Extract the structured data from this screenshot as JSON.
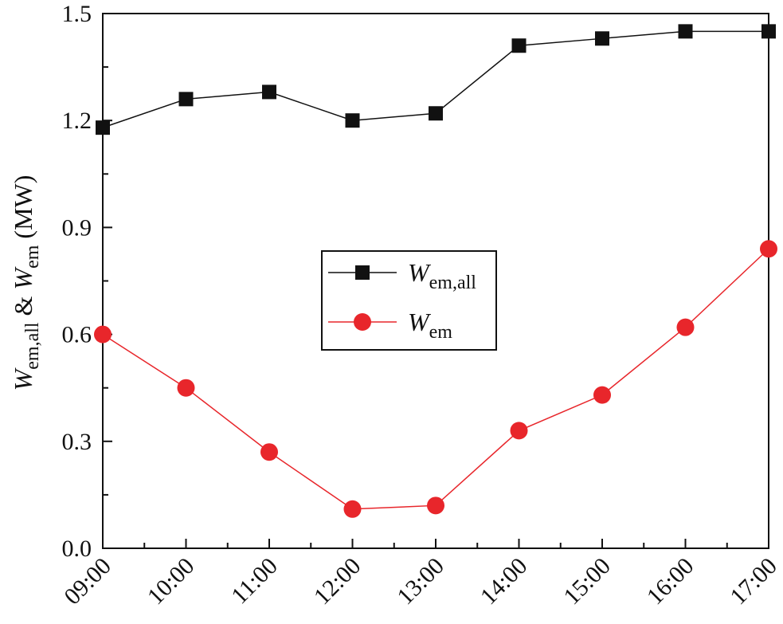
{
  "chart_data": {
    "type": "line",
    "categories": [
      "09:00",
      "10:00",
      "11:00",
      "12:00",
      "13:00",
      "14:00",
      "15:00",
      "16:00",
      "17:00"
    ],
    "series": [
      {
        "name": "W_em,all",
        "label_main": "W",
        "label_sub": "em,all",
        "color": "#111111",
        "marker": "square",
        "values": [
          1.18,
          1.26,
          1.28,
          1.2,
          1.22,
          1.41,
          1.43,
          1.45,
          1.45
        ]
      },
      {
        "name": "W_em",
        "label_main": "W",
        "label_sub": "em",
        "color": "#e8262b",
        "marker": "circle",
        "values": [
          0.6,
          0.45,
          0.27,
          0.11,
          0.12,
          0.33,
          0.43,
          0.62,
          0.84
        ]
      }
    ],
    "ylim": [
      0.0,
      1.5
    ],
    "yticks": [
      "0.0",
      "0.3",
      "0.6",
      "0.9",
      "1.2",
      "1.5"
    ],
    "ylabel": {
      "part1_main": "W",
      "part1_sub": "em,all",
      "amp": " & ",
      "part2_main": "W",
      "part2_sub": "em",
      "unit": " (MW)"
    },
    "xlabel": "",
    "legend_position": "center-left"
  }
}
